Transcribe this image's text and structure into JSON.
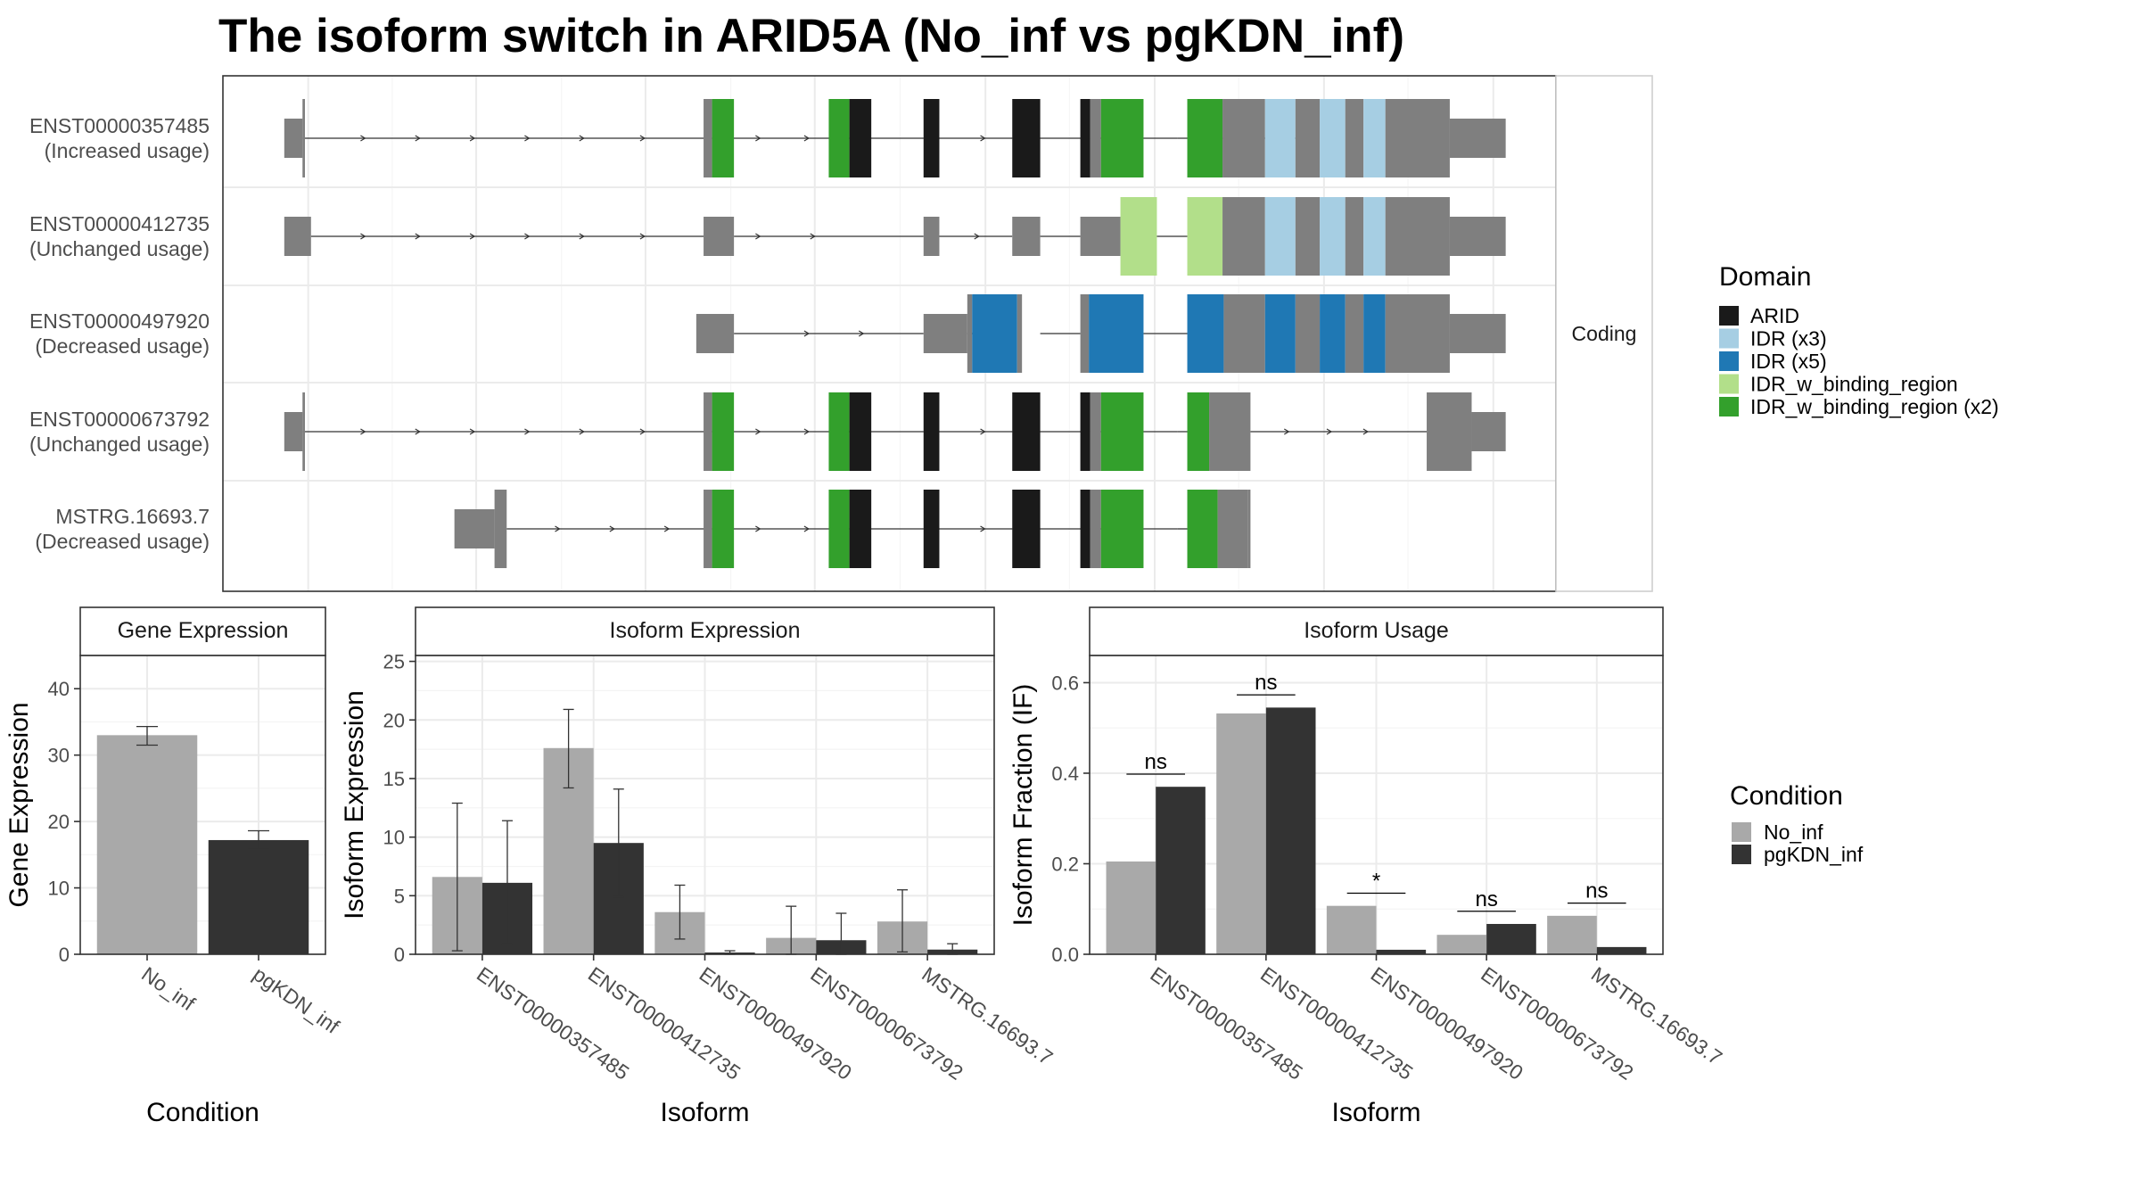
{
  "title": "The isoform switch in ARID5A (No_inf vs pgKDN_inf)",
  "colors": {
    "ARID": "#1a1a1a",
    "IDR (x3)": "#a6cee3",
    "IDR (x5)": "#1f78b4",
    "IDR_w_binding_region": "#b2df8a",
    "IDR_w_binding_region (x2)": "#33a02c",
    "exon": "#7f7f7f",
    "No_inf": "#a9a9a9",
    "pgKDN_inf": "#333333"
  },
  "chart_data": [
    {
      "type": "gene-structure",
      "strip_label": "Coding",
      "x_axis": "genomic position (no tick labels shown)",
      "x_range": [
        0,
        1000
      ],
      "transcripts": [
        {
          "label": "ENST00000357485",
          "usage": "(Increased usage)",
          "introns": [
            [
              20,
              357
            ],
            [
              357,
              470
            ],
            [
              470,
              531
            ],
            [
              531,
              604
            ],
            [
              604,
              740
            ],
            [
              740,
              845
            ]
          ],
          "arrows": [
            70,
            115,
            160,
            205,
            250,
            300,
            395,
            435,
            580
          ],
          "segments": [
            {
              "s": 5,
              "e": 20,
              "k": "utr"
            },
            {
              "s": 20,
              "e": 22,
              "k": "cds"
            },
            {
              "s": 350,
              "e": 357,
              "k": "cds"
            },
            {
              "s": 357,
              "e": 375,
              "k": "IDR_w_binding_region (x2)"
            },
            {
              "s": 453,
              "e": 470,
              "k": "IDR_w_binding_region (x2)"
            },
            {
              "s": 470,
              "e": 488,
              "k": "ARID"
            },
            {
              "s": 531,
              "e": 544,
              "k": "ARID"
            },
            {
              "s": 604,
              "e": 627,
              "k": "ARID"
            },
            {
              "s": 660,
              "e": 668,
              "k": "ARID"
            },
            {
              "s": 668,
              "e": 677,
              "k": "cds"
            },
            {
              "s": 677,
              "e": 712,
              "k": "IDR_w_binding_region (x2)"
            },
            {
              "s": 748,
              "e": 777,
              "k": "IDR_w_binding_region (x2)"
            },
            {
              "s": 777,
              "e": 812,
              "k": "cds"
            },
            {
              "s": 812,
              "e": 837,
              "k": "IDR (x3)"
            },
            {
              "s": 837,
              "e": 857,
              "k": "cds"
            },
            {
              "s": 857,
              "e": 878,
              "k": "IDR (x3)"
            },
            {
              "s": 878,
              "e": 893,
              "k": "cds"
            },
            {
              "s": 893,
              "e": 911,
              "k": "IDR (x3)"
            },
            {
              "s": 911,
              "e": 964,
              "k": "cds"
            },
            {
              "s": 964,
              "e": 1010,
              "k": "utr"
            }
          ]
        },
        {
          "label": "ENST00000412735",
          "usage": "(Unchanged usage)",
          "introns": [
            [
              27,
              350
            ],
            [
              375,
              531
            ],
            [
              544,
              604
            ],
            [
              627,
              660
            ],
            [
              723,
              748
            ]
          ],
          "arrows": [
            70,
            115,
            160,
            205,
            250,
            300,
            395,
            440,
            575
          ],
          "segments": [
            {
              "s": 5,
              "e": 27,
              "k": "utr"
            },
            {
              "s": 350,
              "e": 375,
              "k": "utr"
            },
            {
              "s": 531,
              "e": 544,
              "k": "utr"
            },
            {
              "s": 604,
              "e": 627,
              "k": "utr"
            },
            {
              "s": 660,
              "e": 693,
              "k": "utr"
            },
            {
              "s": 693,
              "e": 708,
              "k": "IDR_w_binding_region"
            },
            {
              "s": 708,
              "e": 723,
              "k": "IDR_w_binding_region"
            },
            {
              "s": 748,
              "e": 777,
              "k": "IDR_w_binding_region"
            },
            {
              "s": 777,
              "e": 812,
              "k": "cds"
            },
            {
              "s": 812,
              "e": 837,
              "k": "IDR (x3)"
            },
            {
              "s": 837,
              "e": 857,
              "k": "cds"
            },
            {
              "s": 857,
              "e": 878,
              "k": "IDR (x3)"
            },
            {
              "s": 878,
              "e": 893,
              "k": "cds"
            },
            {
              "s": 893,
              "e": 911,
              "k": "IDR (x3)"
            },
            {
              "s": 911,
              "e": 964,
              "k": "cds"
            },
            {
              "s": 964,
              "e": 1010,
              "k": "utr"
            }
          ]
        },
        {
          "label": "ENST00000497920",
          "usage": "(Decreased usage)",
          "introns": [
            [
              375,
              531
            ],
            [
              567,
              604
            ],
            [
              627,
              660
            ],
            [
              712,
              748
            ]
          ],
          "arrows": [
            435,
            480
          ],
          "segments": [
            {
              "s": 344,
              "e": 375,
              "k": "utr"
            },
            {
              "s": 531,
              "e": 567,
              "k": "utr"
            },
            {
              "s": 567,
              "e": 571,
              "k": "cds"
            },
            {
              "s": 571,
              "e": 608,
              "k": "IDR (x5)"
            },
            {
              "s": 608,
              "e": 612,
              "k": "cds"
            },
            {
              "s": 660,
              "e": 667,
              "k": "cds"
            },
            {
              "s": 667,
              "e": 712,
              "k": "IDR (x5)"
            },
            {
              "s": 748,
              "e": 778,
              "k": "IDR (x5)"
            },
            {
              "s": 778,
              "e": 812,
              "k": "cds"
            },
            {
              "s": 812,
              "e": 837,
              "k": "IDR (x5)"
            },
            {
              "s": 837,
              "e": 857,
              "k": "cds"
            },
            {
              "s": 857,
              "e": 878,
              "k": "IDR (x5)"
            },
            {
              "s": 878,
              "e": 893,
              "k": "cds"
            },
            {
              "s": 893,
              "e": 911,
              "k": "IDR (x5)"
            },
            {
              "s": 911,
              "e": 964,
              "k": "cds"
            },
            {
              "s": 964,
              "e": 1010,
              "k": "utr"
            }
          ]
        },
        {
          "label": "ENST00000673792",
          "usage": "(Unchanged usage)",
          "introns": [
            [
              20,
              357
            ],
            [
              357,
              470
            ],
            [
              470,
              531
            ],
            [
              531,
              604
            ],
            [
              604,
              740
            ],
            [
              740,
              766
            ],
            [
              800,
              945
            ]
          ],
          "arrows": [
            70,
            115,
            160,
            205,
            250,
            300,
            395,
            435,
            580,
            830,
            865,
            895
          ],
          "segments": [
            {
              "s": 5,
              "e": 20,
              "k": "utr"
            },
            {
              "s": 20,
              "e": 22,
              "k": "cds"
            },
            {
              "s": 350,
              "e": 357,
              "k": "cds"
            },
            {
              "s": 357,
              "e": 375,
              "k": "IDR_w_binding_region (x2)"
            },
            {
              "s": 453,
              "e": 470,
              "k": "IDR_w_binding_region (x2)"
            },
            {
              "s": 470,
              "e": 488,
              "k": "ARID"
            },
            {
              "s": 531,
              "e": 544,
              "k": "ARID"
            },
            {
              "s": 604,
              "e": 627,
              "k": "ARID"
            },
            {
              "s": 660,
              "e": 668,
              "k": "ARID"
            },
            {
              "s": 668,
              "e": 677,
              "k": "cds"
            },
            {
              "s": 677,
              "e": 712,
              "k": "IDR_w_binding_region (x2)"
            },
            {
              "s": 748,
              "e": 766,
              "k": "IDR_w_binding_region (x2)"
            },
            {
              "s": 766,
              "e": 800,
              "k": "cds"
            },
            {
              "s": 945,
              "e": 982,
              "k": "cds"
            },
            {
              "s": 982,
              "e": 1010,
              "k": "utr"
            }
          ]
        },
        {
          "label": "MSTRG.16693.7",
          "usage": "(Decreased usage)",
          "introns": [
            [
              188,
              357
            ],
            [
              357,
              470
            ],
            [
              470,
              531
            ],
            [
              531,
              604
            ],
            [
              604,
              740
            ],
            [
              740,
              748
            ]
          ],
          "arrows": [
            230,
            275,
            320,
            395,
            435,
            580
          ],
          "segments": [
            {
              "s": 145,
              "e": 178,
              "k": "utr"
            },
            {
              "s": 178,
              "e": 188,
              "k": "cds"
            },
            {
              "s": 350,
              "e": 357,
              "k": "cds"
            },
            {
              "s": 357,
              "e": 375,
              "k": "IDR_w_binding_region (x2)"
            },
            {
              "s": 453,
              "e": 470,
              "k": "IDR_w_binding_region (x2)"
            },
            {
              "s": 470,
              "e": 488,
              "k": "ARID"
            },
            {
              "s": 531,
              "e": 544,
              "k": "ARID"
            },
            {
              "s": 604,
              "e": 627,
              "k": "ARID"
            },
            {
              "s": 660,
              "e": 668,
              "k": "ARID"
            },
            {
              "s": 668,
              "e": 677,
              "k": "cds"
            },
            {
              "s": 677,
              "e": 712,
              "k": "IDR_w_binding_region (x2)"
            },
            {
              "s": 748,
              "e": 773,
              "k": "IDR_w_binding_region (x2)"
            },
            {
              "s": 773,
              "e": 798,
              "k": "cds"
            },
            {
              "s": 798,
              "e": 800,
              "k": "cds"
            }
          ]
        }
      ],
      "legend": {
        "title": "Domain",
        "entries": [
          "ARID",
          "IDR (x3)",
          "IDR (x5)",
          "IDR_w_binding_region",
          "IDR_w_binding_region (x2)"
        ],
        "placement": "right"
      }
    },
    {
      "type": "bar",
      "strip_label": "Gene Expression",
      "xlabel": "Condition",
      "ylabel": "Gene Expression",
      "ylim": [
        0,
        45
      ],
      "yticks": [
        0,
        10,
        20,
        30,
        40
      ],
      "categories": [
        "No_inf",
        "pgKDN_inf"
      ],
      "values": [
        33.0,
        17.2
      ],
      "errors": [
        [
          31.5,
          34.3
        ],
        [
          15.8,
          18.6
        ]
      ],
      "grid": true
    },
    {
      "type": "bar",
      "strip_label": "Isoform Expression",
      "xlabel": "Isoform",
      "ylabel": "Isoform Expression",
      "ylim": [
        0,
        25.5
      ],
      "yticks": [
        0,
        5,
        10,
        15,
        20,
        25
      ],
      "categories": [
        "ENST00000357485",
        "ENST00000412735",
        "ENST00000497920",
        "ENST00000673792",
        "MSTRG.16693.7"
      ],
      "series": [
        {
          "name": "No_inf",
          "values": [
            6.6,
            17.6,
            3.6,
            1.4,
            2.8
          ],
          "errors": [
            [
              0.3,
              12.9
            ],
            [
              14.2,
              20.9
            ],
            [
              1.3,
              5.9
            ],
            [
              0.0,
              4.1
            ],
            [
              0.2,
              5.5
            ]
          ]
        },
        {
          "name": "pgKDN_inf",
          "values": [
            6.1,
            9.5,
            0.15,
            1.2,
            0.4
          ],
          "errors": [
            [
              0.9,
              11.4
            ],
            [
              4.9,
              14.1
            ],
            [
              0.0,
              0.3
            ],
            [
              0.0,
              3.5
            ],
            [
              0.0,
              0.9
            ]
          ]
        }
      ],
      "grid": true
    },
    {
      "type": "bar",
      "strip_label": "Isoform Usage",
      "xlabel": "Isoform",
      "ylabel": "Isoform Fraction (IF)",
      "ylim": [
        0,
        0.66
      ],
      "yticks": [
        0.0,
        0.2,
        0.4,
        0.6
      ],
      "ytick_labels": [
        "0.0",
        "0.2",
        "0.4",
        "0.6"
      ],
      "categories": [
        "ENST00000357485",
        "ENST00000412735",
        "ENST00000497920",
        "ENST00000673792",
        "MSTRG.16693.7"
      ],
      "series": [
        {
          "name": "No_inf",
          "values": [
            0.205,
            0.532,
            0.107,
            0.043,
            0.085
          ]
        },
        {
          "name": "pgKDN_inf",
          "values": [
            0.37,
            0.545,
            0.01,
            0.067,
            0.016
          ]
        }
      ],
      "significance": [
        {
          "label": "ns",
          "y": 0.398
        },
        {
          "label": "ns",
          "y": 0.573
        },
        {
          "label": "*",
          "y": 0.135
        },
        {
          "label": "ns",
          "y": 0.095
        },
        {
          "label": "ns",
          "y": 0.113
        }
      ],
      "grid": true
    }
  ],
  "condition_legend": {
    "title": "Condition",
    "entries": [
      "No_inf",
      "pgKDN_inf"
    ],
    "placement": "right"
  }
}
